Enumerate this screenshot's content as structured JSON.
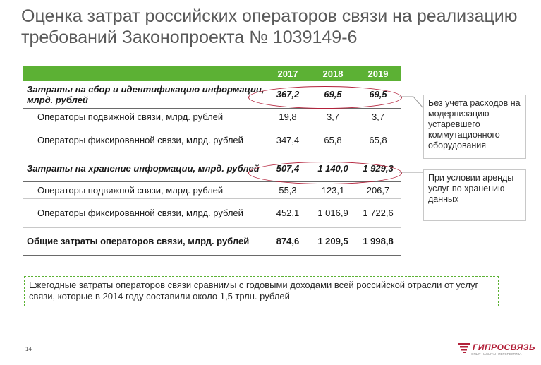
{
  "title": "Оценка затрат российских операторов связи на реализацию требований Законопроекта № 1039149-6",
  "table": {
    "years": [
      "2017",
      "2018",
      "2019"
    ],
    "rows": [
      {
        "label": "Затраты на сбор и идентификацию информации, млрд. рублей",
        "values": [
          "367,2",
          "69,5",
          "69,5"
        ]
      },
      {
        "label": "Операторы подвижной связи, млрд. рублей",
        "values": [
          "19,8",
          "3,7",
          "3,7"
        ]
      },
      {
        "label": "Операторы фиксированной связи, млрд. рублей",
        "values": [
          "347,4",
          "65,8",
          "65,8"
        ]
      },
      {
        "label": "Затраты на хранение информации, млрд. рублей",
        "values": [
          "507,4",
          "1 140,0",
          "1 929,3"
        ]
      },
      {
        "label": "Операторы подвижной связи, млрд. рублей",
        "values": [
          "55,3",
          "123,1",
          "206,7"
        ]
      },
      {
        "label": "Операторы фиксированной связи, млрд. рублей",
        "values": [
          "452,1",
          "1 016,9",
          "1 722,6"
        ]
      },
      {
        "label": "Общие затраты операторов связи, млрд. рублей",
        "values": [
          "874,6",
          "1 209,5",
          "1 998,8"
        ]
      }
    ]
  },
  "callouts": {
    "collection": "Без учета расходов на модернизацию устаревшего коммутационного оборудования",
    "storage": "При условии аренды услуг по хранению данных"
  },
  "note": "Ежегодные затраты операторов связи сравнимы с годовыми доходами всей российской отрасли от услуг связи, которые в 2014 году составили около 1,5 трлн. рублей",
  "page_number": "14",
  "logo": {
    "name": "ГИПРОСВЯЗЬ",
    "tagline": "ОПЫТ НАСЫТАН ПЕРСПЕКТИВА"
  },
  "colors": {
    "header_green": "#5cb134",
    "accent_red": "#b3213a",
    "title_gray": "#595959"
  }
}
